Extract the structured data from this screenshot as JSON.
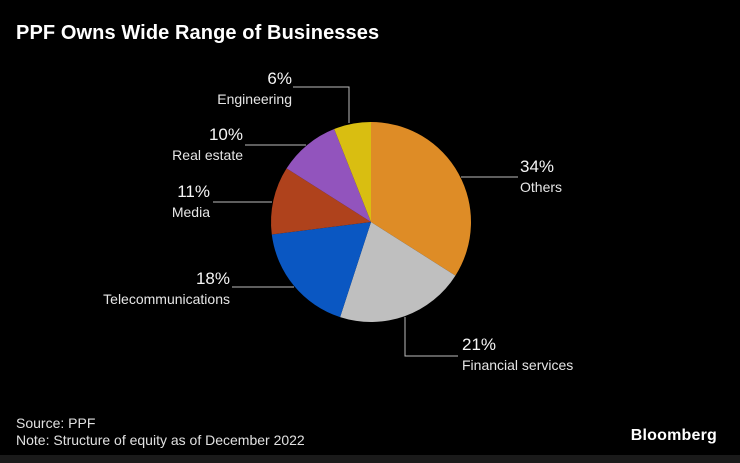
{
  "header": {
    "title": "PPF Owns Wide Range of Businesses"
  },
  "footer": {
    "source": "Source: PPF",
    "note": "Note: Structure of equity as of December 2022",
    "brand": "Bloomberg"
  },
  "colors": {
    "background": "#000000",
    "callout_line": "#bdbdbd",
    "title_text": "#ffffff",
    "label_text": "#f2f2f2"
  },
  "chart_data": {
    "type": "pie",
    "title": "PPF Owns Wide Range of Businesses",
    "source": "PPF",
    "note": "Structure of equity as of December 2022",
    "unit": "%",
    "start_angle_deg": 0,
    "direction": "clockwise",
    "categories": [
      "Others",
      "Financial services",
      "Telecommunications",
      "Media",
      "Real estate",
      "Engineering"
    ],
    "values": [
      34,
      21,
      18,
      11,
      10,
      6
    ],
    "colors": [
      "#DE8C26",
      "#BFBFBF",
      "#0A57C2",
      "#AF421C",
      "#9254BD",
      "#D9BE11"
    ],
    "slices": [
      {
        "slug": "others",
        "name": "Others",
        "value": 34,
        "pct_label": "34%"
      },
      {
        "slug": "financial-services",
        "name": "Financial services",
        "value": 21,
        "pct_label": "21%"
      },
      {
        "slug": "telecommunications",
        "name": "Telecommunications",
        "value": 18,
        "pct_label": "18%"
      },
      {
        "slug": "media",
        "name": "Media",
        "value": 11,
        "pct_label": "11%"
      },
      {
        "slug": "real-estate",
        "name": "Real estate",
        "value": 10,
        "pct_label": "10%"
      },
      {
        "slug": "engineering",
        "name": "Engineering",
        "value": 6,
        "pct_label": "6%"
      }
    ]
  }
}
